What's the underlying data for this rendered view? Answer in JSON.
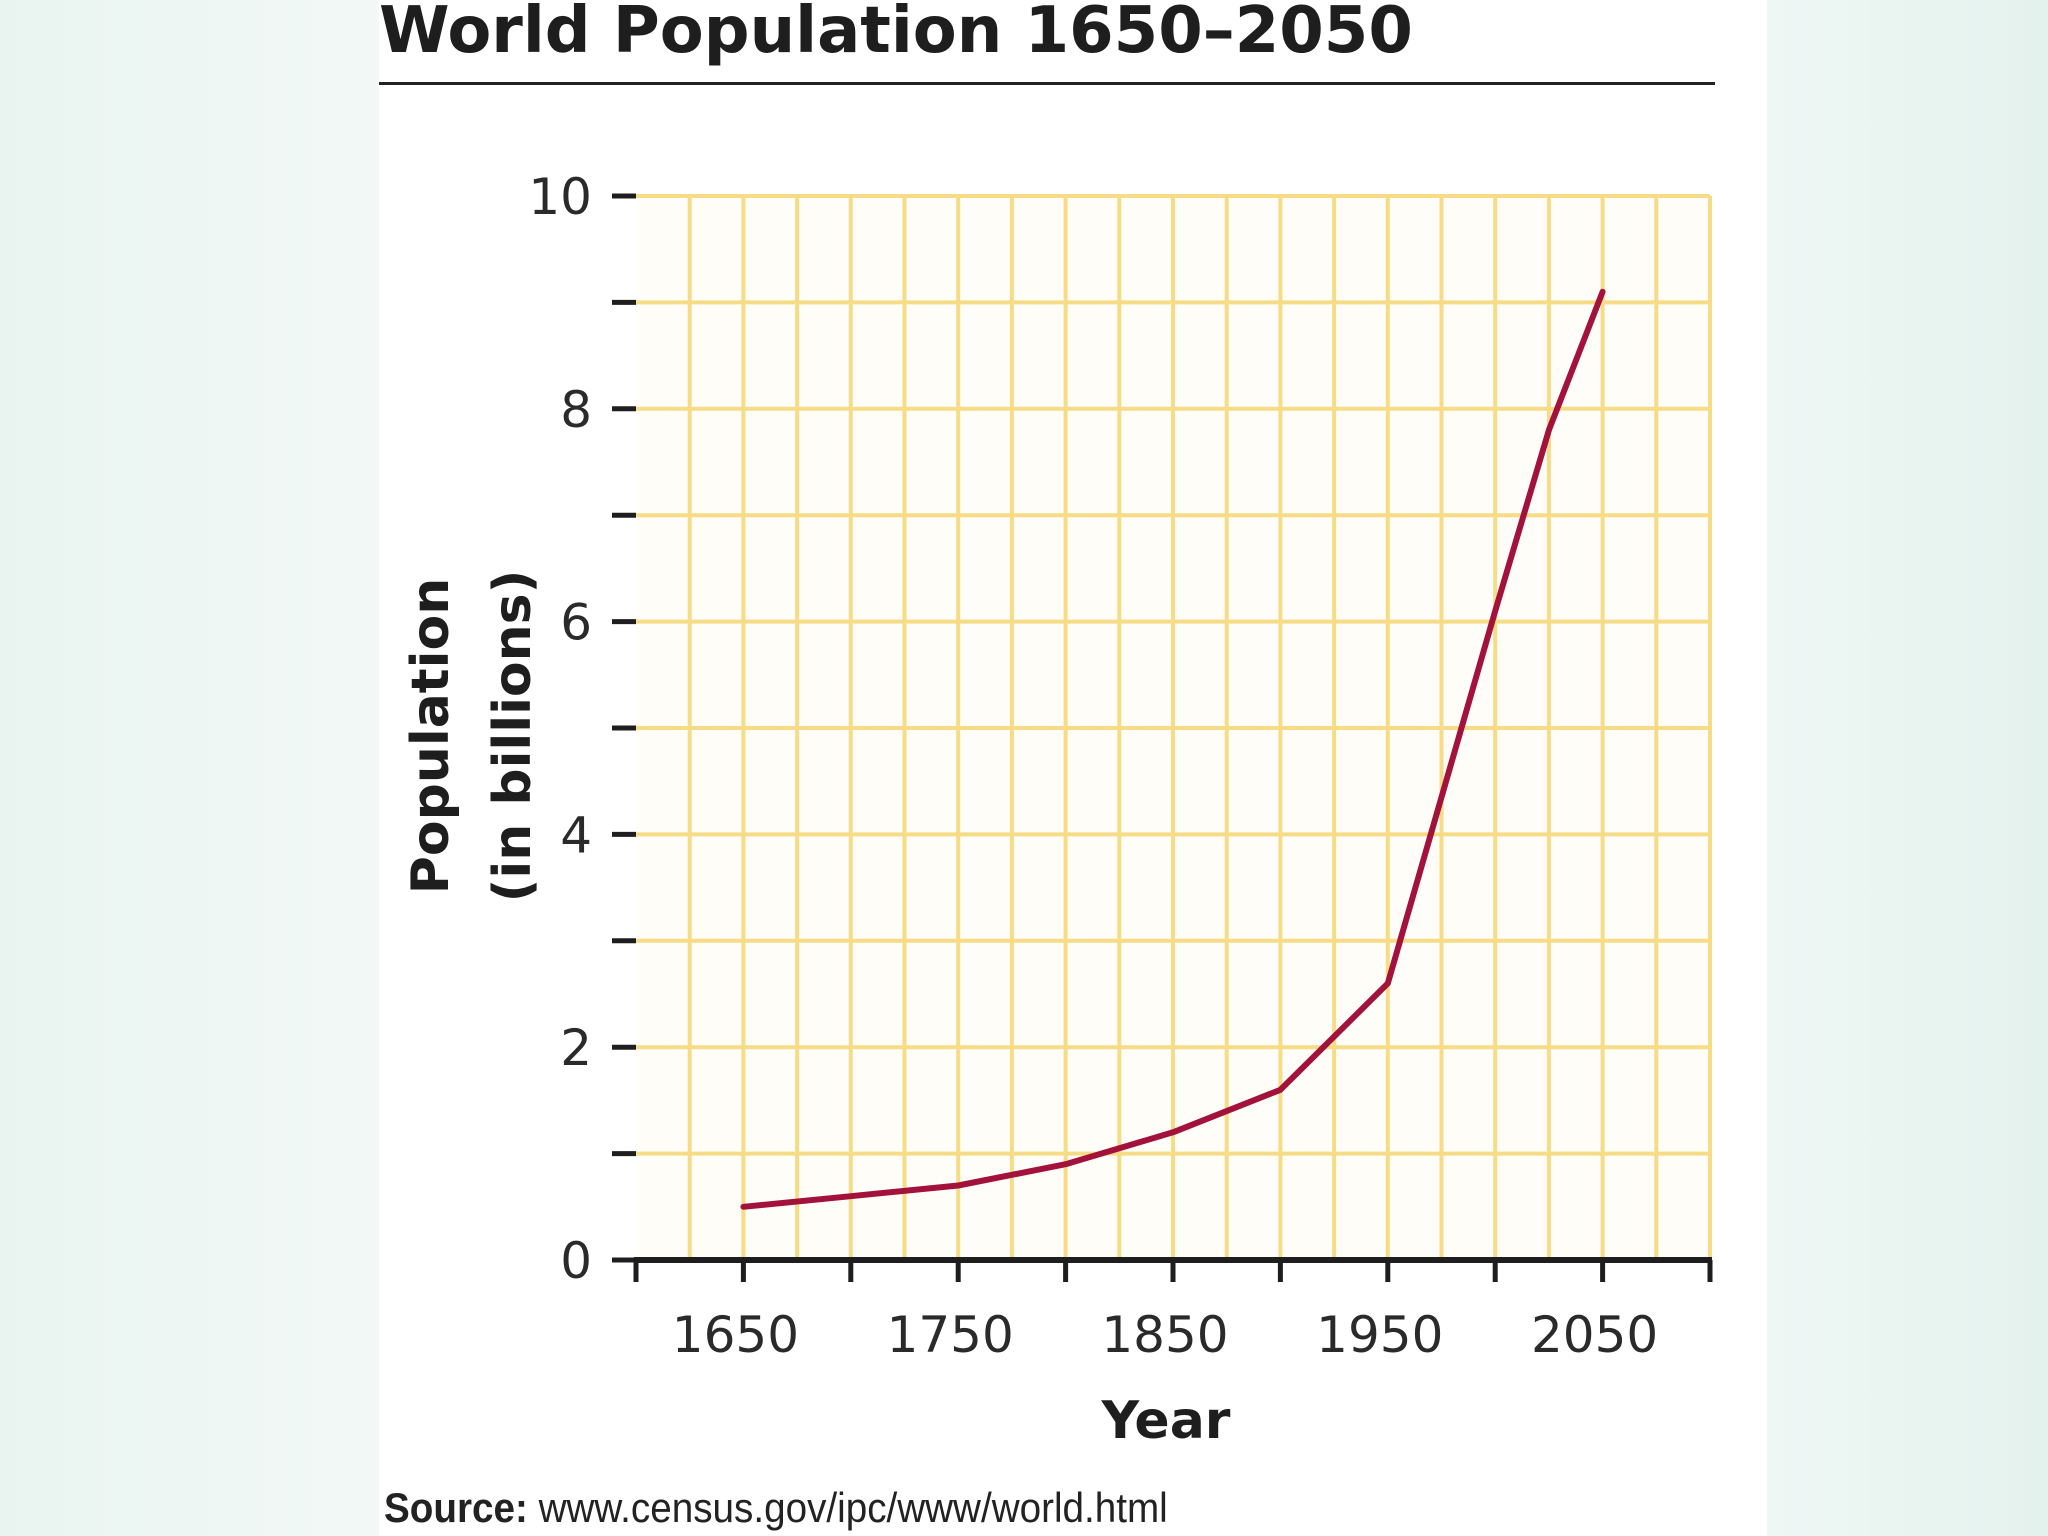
{
  "page": {
    "background": "#f3f9f7",
    "panel_color": "#ffffff"
  },
  "title": "World Population 1650–2050",
  "source": {
    "label": "Source:",
    "url": "www.census.gov/ipc/www/world.html"
  },
  "chart_data": {
    "type": "line",
    "title": "World Population 1650–2050",
    "xlabel": "Year",
    "ylabel": "Population",
    "ylabel_line2": "(in billions)",
    "xlim": [
      1600,
      2100
    ],
    "ylim": [
      0,
      10
    ],
    "x_ticks": [
      1650,
      1750,
      1850,
      1950,
      2050
    ],
    "x_minor_ticks": [
      1600,
      1700,
      1800,
      1900,
      2000,
      2100
    ],
    "y_ticks": [
      0,
      2,
      4,
      6,
      8,
      10
    ],
    "y_minor_ticks": [
      1,
      3,
      5,
      7,
      9
    ],
    "grid": true,
    "grid_step": {
      "x": 25,
      "y": 1
    },
    "colors": {
      "line": "#a3123a",
      "grid": "#f6dc86",
      "axis": "#1e1e1e",
      "plot_background": "#fffdf8"
    },
    "series": [
      {
        "x": [
          1650,
          1700,
          1750,
          1800,
          1850,
          1900,
          1950,
          2000,
          2025,
          2050
        ],
        "y": [
          0.5,
          0.6,
          0.7,
          0.9,
          1.2,
          1.6,
          2.6,
          6.1,
          7.8,
          9.1
        ]
      }
    ]
  }
}
